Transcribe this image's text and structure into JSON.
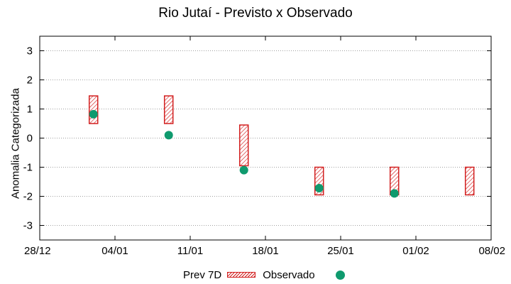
{
  "chart_data": {
    "type": "range-bar-with-points",
    "title": "Rio Jutaí - Previsto x Observado",
    "xlabel": "",
    "ylabel": "Anomalia Categorizada",
    "ylim": [
      -3.5,
      3.5
    ],
    "yticks": [
      -3,
      -2,
      -1,
      0,
      1,
      2,
      3
    ],
    "xlim": [
      "2019-12-28",
      "2020-02-08"
    ],
    "xticks": [
      "28/12",
      "04/01",
      "11/01",
      "18/01",
      "25/01",
      "01/02",
      "08/02"
    ],
    "grid": true,
    "legend": "bottom",
    "series": [
      {
        "name": "Prev 7D",
        "style": "hatched-box",
        "color": "#d21f1f",
        "points": [
          {
            "x": "2020-01-02",
            "low": 0.5,
            "high": 1.45
          },
          {
            "x": "2020-01-09",
            "low": 0.5,
            "high": 1.45
          },
          {
            "x": "2020-01-16",
            "low": -0.95,
            "high": 0.45
          },
          {
            "x": "2020-01-23",
            "low": -1.95,
            "high": -1.0
          },
          {
            "x": "2020-01-30",
            "low": -1.95,
            "high": -1.0
          },
          {
            "x": "2020-02-06",
            "low": -1.95,
            "high": -1.0
          }
        ]
      },
      {
        "name": "Observado",
        "style": "point",
        "color": "#0f9a6e",
        "points": [
          {
            "x": "2020-01-02",
            "y": 0.82
          },
          {
            "x": "2020-01-09",
            "y": 0.1
          },
          {
            "x": "2020-01-16",
            "y": -1.1
          },
          {
            "x": "2020-01-23",
            "y": -1.72
          },
          {
            "x": "2020-01-30",
            "y": -1.9
          }
        ]
      }
    ]
  }
}
